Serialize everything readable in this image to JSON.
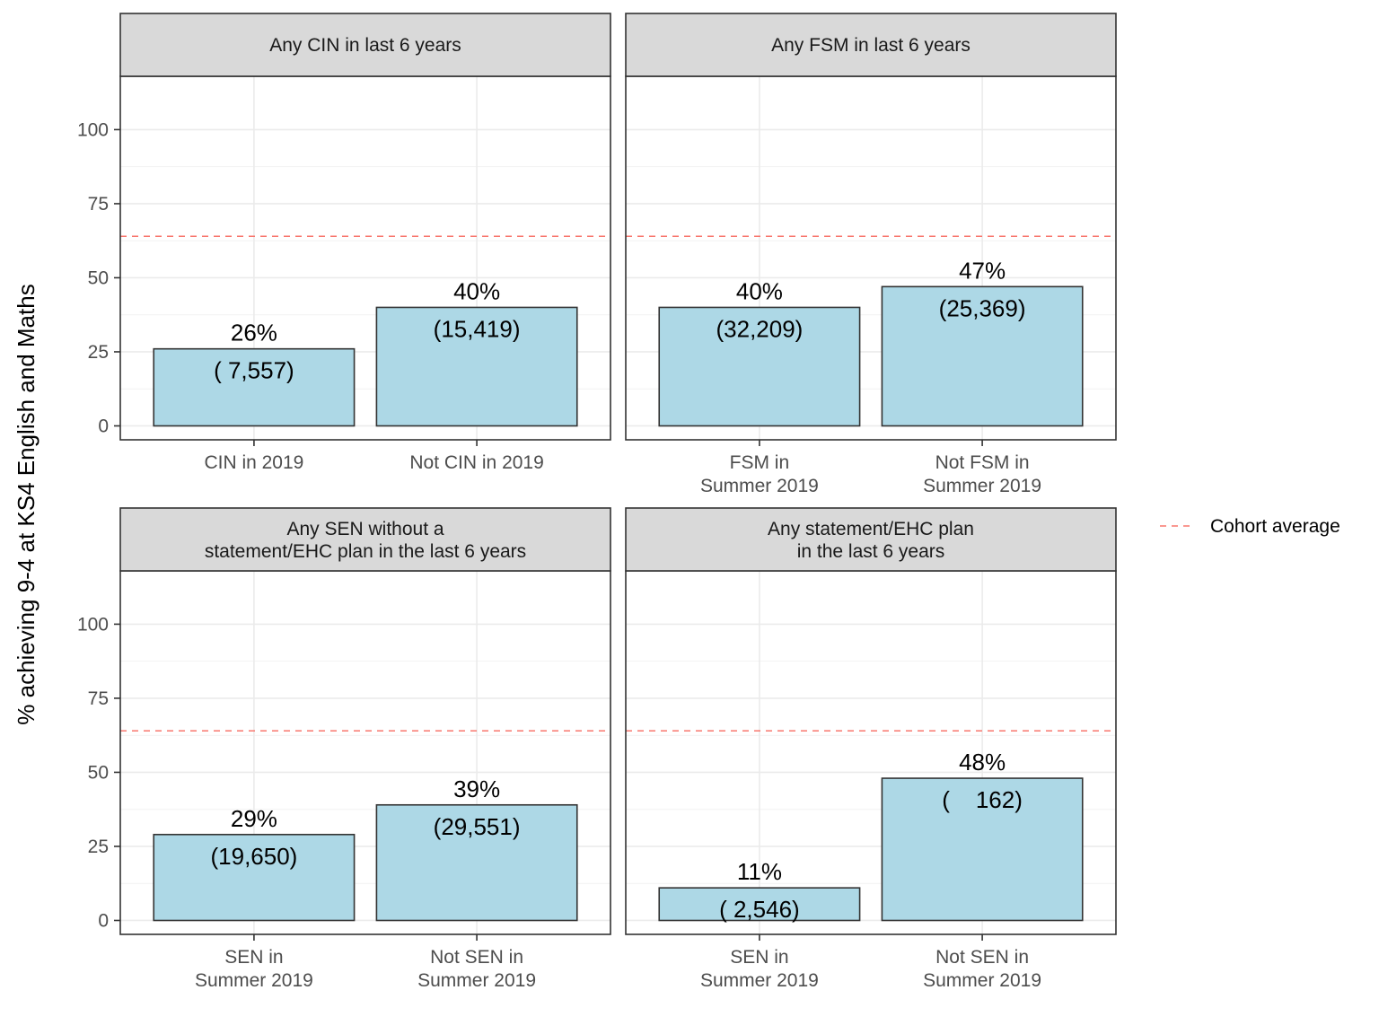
{
  "chart_data": {
    "type": "bar",
    "ylabel": "% achieving 9-4 at KS4 English and Maths",
    "ylim": [
      0,
      100
    ],
    "y_ticks": [
      0,
      25,
      50,
      75,
      100
    ],
    "grid": true,
    "legend_position": "right",
    "bar_color": "#add8e6",
    "reference_line": {
      "name": "Cohort average",
      "value": 64,
      "color": "#f8766d",
      "style": "dashed"
    },
    "panels": [
      {
        "title": "Any CIN in last 6 years",
        "categories": [
          "CIN in 2019",
          "Not CIN in 2019"
        ],
        "values": [
          26,
          40
        ],
        "value_labels": [
          "26%",
          "40%"
        ],
        "count_labels": [
          "( 7,557)",
          "(15,419)"
        ]
      },
      {
        "title": "Any FSM in last 6 years",
        "categories": [
          "FSM in\nSummer 2019",
          "Not FSM in\nSummer 2019"
        ],
        "values": [
          40,
          47
        ],
        "value_labels": [
          "40%",
          "47%"
        ],
        "count_labels": [
          "(32,209)",
          "(25,369)"
        ]
      },
      {
        "title": "Any SEN without a\nstatement/EHC plan in the last 6 years",
        "categories": [
          "SEN in\nSummer 2019",
          "Not SEN in\nSummer 2019"
        ],
        "values": [
          29,
          39
        ],
        "value_labels": [
          "29%",
          "39%"
        ],
        "count_labels": [
          "(19,650)",
          "(29,551)"
        ]
      },
      {
        "title": "Any statement/EHC plan\nin the last 6 years",
        "categories": [
          "SEN in\nSummer 2019",
          "Not SEN in\nSummer 2019"
        ],
        "values": [
          11,
          48
        ],
        "value_labels": [
          "11%",
          "48%"
        ],
        "count_labels": [
          "( 2,546)",
          "(    162)"
        ]
      }
    ]
  }
}
